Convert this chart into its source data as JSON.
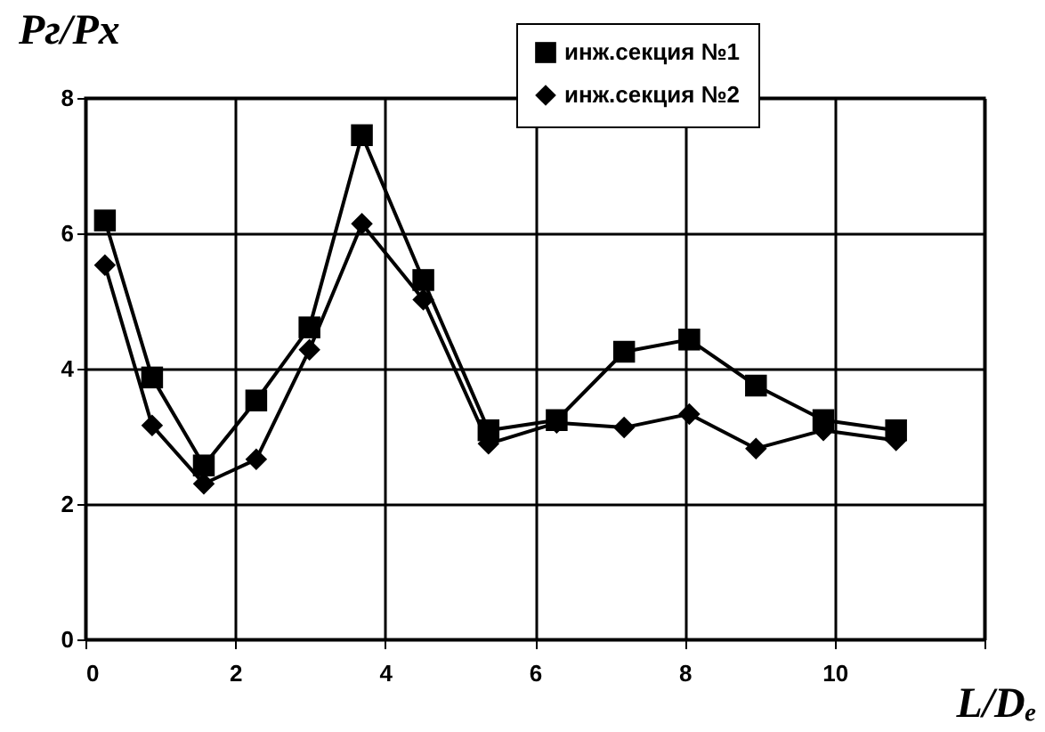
{
  "chart_data": {
    "type": "line",
    "xlabel": "L/Dₑ",
    "ylabel": "Pг/Pх",
    "x": [
      0.26,
      0.89,
      1.58,
      2.28,
      2.99,
      3.69,
      4.51,
      5.38,
      6.29,
      7.19,
      8.06,
      8.95,
      9.85,
      10.82
    ],
    "series": [
      {
        "name": "инж.секция №1",
        "color": "#000000",
        "marker": "square",
        "values": [
          6.19,
          3.87,
          2.57,
          3.53,
          4.61,
          7.45,
          5.31,
          3.09,
          3.24,
          4.25,
          4.43,
          3.75,
          3.24,
          3.09
        ]
      },
      {
        "name": "инж.секция №2",
        "color": "#000000",
        "marker": "diamond",
        "values": [
          5.53,
          3.16,
          2.3,
          2.66,
          4.28,
          6.14,
          5.02,
          2.89,
          3.2,
          3.13,
          3.33,
          2.82,
          3.09,
          2.94
        ]
      }
    ],
    "xlim": [
      0,
      12
    ],
    "xticks": [
      0,
      2,
      4,
      6,
      8,
      10,
      {
        "value": 12,
        "label": null
      }
    ],
    "ylim": [
      0,
      8
    ],
    "yticks": [
      0,
      2,
      4,
      6,
      8
    ],
    "grid": true,
    "legend": "top right",
    "line_style": "solid"
  }
}
